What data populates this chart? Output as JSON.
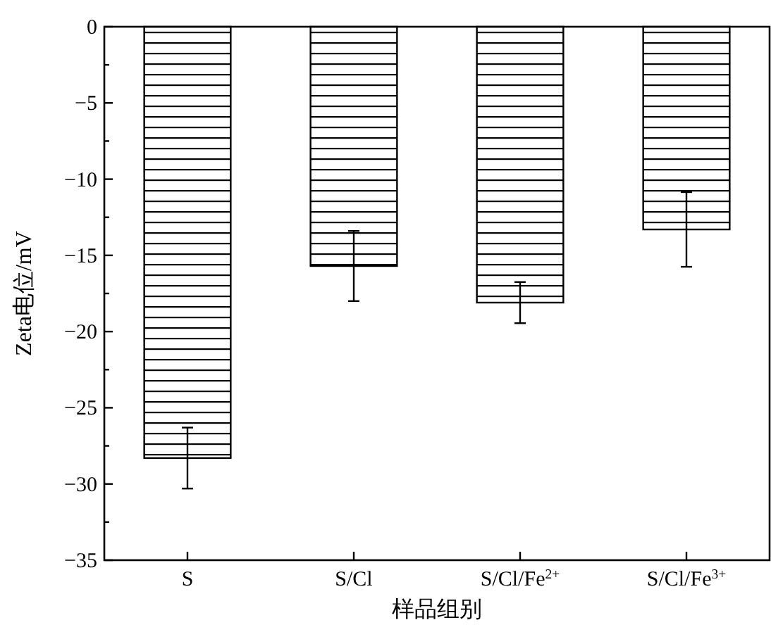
{
  "chart_data": {
    "type": "bar",
    "xlabel": "样品组别",
    "ylabel": "Zeta电位/mV",
    "categories": [
      "S",
      "S/Cl",
      "S/Cl/Fe$^{2+}$",
      "S/Cl/Fe$^{3+}$"
    ],
    "values": [
      -28.3,
      -15.7,
      -18.1,
      -13.3
    ],
    "errors": [
      2.0,
      2.3,
      1.35,
      2.45
    ],
    "color": "#000000",
    "ylim": [
      -35,
      0
    ],
    "yticks": [
      0,
      {
        "value": -2.5,
        "label": null
      },
      -5,
      {
        "value": -7.5,
        "label": null
      },
      -10,
      {
        "value": -12.5,
        "label": null
      },
      -15,
      {
        "value": -17.5,
        "label": null
      },
      -20,
      {
        "value": -22.5,
        "label": null
      },
      -25,
      {
        "value": -27.5,
        "label": null
      },
      -30,
      {
        "value": -32.5,
        "label": null
      },
      -35
    ],
    "grid": false
  }
}
